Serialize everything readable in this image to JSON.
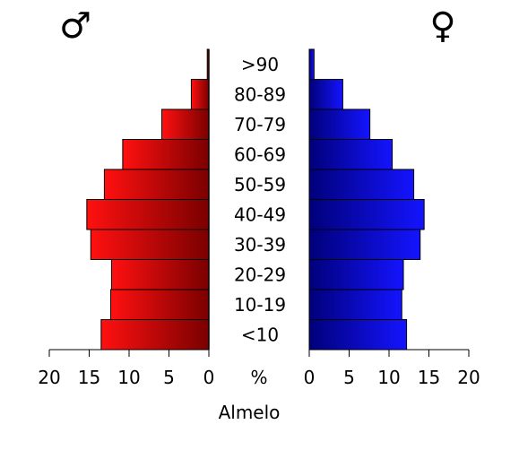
{
  "chart_data": {
    "type": "bar",
    "orientation": "horizontal-population-pyramid",
    "caption": "Almelo",
    "unit_label": "%",
    "male_symbol": "♂",
    "female_symbol": "♀",
    "categories": [
      "<10",
      "10-19",
      "20-29",
      "30-39",
      "40-49",
      "50-59",
      "60-69",
      "70-79",
      "80-89",
      ">90"
    ],
    "series": [
      {
        "side": "left",
        "color": "#ff0000",
        "values": [
          13.5,
          12.3,
          12.2,
          14.8,
          15.3,
          13.1,
          10.8,
          5.9,
          2.2,
          0.2
        ]
      },
      {
        "side": "right",
        "color": "#0000ff",
        "values": [
          12.2,
          11.6,
          11.8,
          13.9,
          14.4,
          13.1,
          10.4,
          7.6,
          4.2,
          0.6
        ]
      }
    ],
    "xlim": [
      0,
      20
    ],
    "left_ticks": [
      "20",
      "15",
      "10",
      "5",
      "0"
    ],
    "right_ticks": [
      "0",
      "5",
      "10",
      "15",
      "20"
    ],
    "tick_values": [
      0,
      5,
      10,
      15,
      20
    ],
    "grid": false,
    "legend": "none"
  }
}
